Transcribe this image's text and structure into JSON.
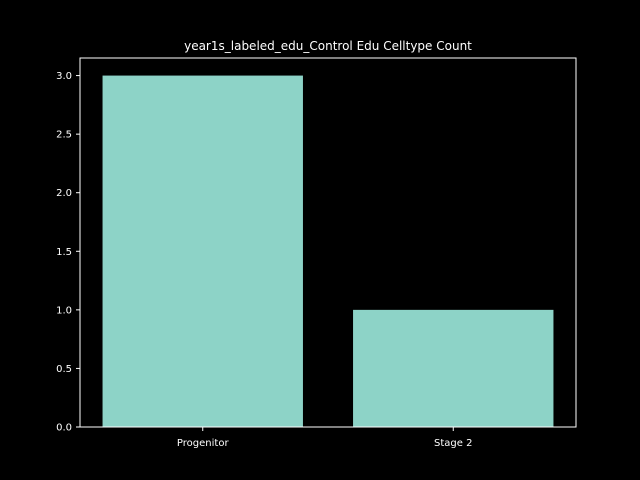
{
  "chart_data": {
    "type": "bar",
    "title": "year1s_labeled_edu_Control Edu Celltype Count",
    "xlabel": "",
    "ylabel": "",
    "categories": [
      "Progenitor",
      "Stage 2"
    ],
    "values": [
      3,
      1
    ],
    "ylim": [
      0,
      3.15
    ],
    "yticks": [
      0.0,
      0.5,
      1.0,
      1.5,
      2.0,
      2.5,
      3.0
    ],
    "ytick_labels": [
      "0.0",
      "0.5",
      "1.0",
      "1.5",
      "2.0",
      "2.5",
      "3.0"
    ],
    "bar_color": "#8dd3c7",
    "background": "#000000",
    "axis_color": "#ffffff",
    "grid": false,
    "legend": "none"
  }
}
